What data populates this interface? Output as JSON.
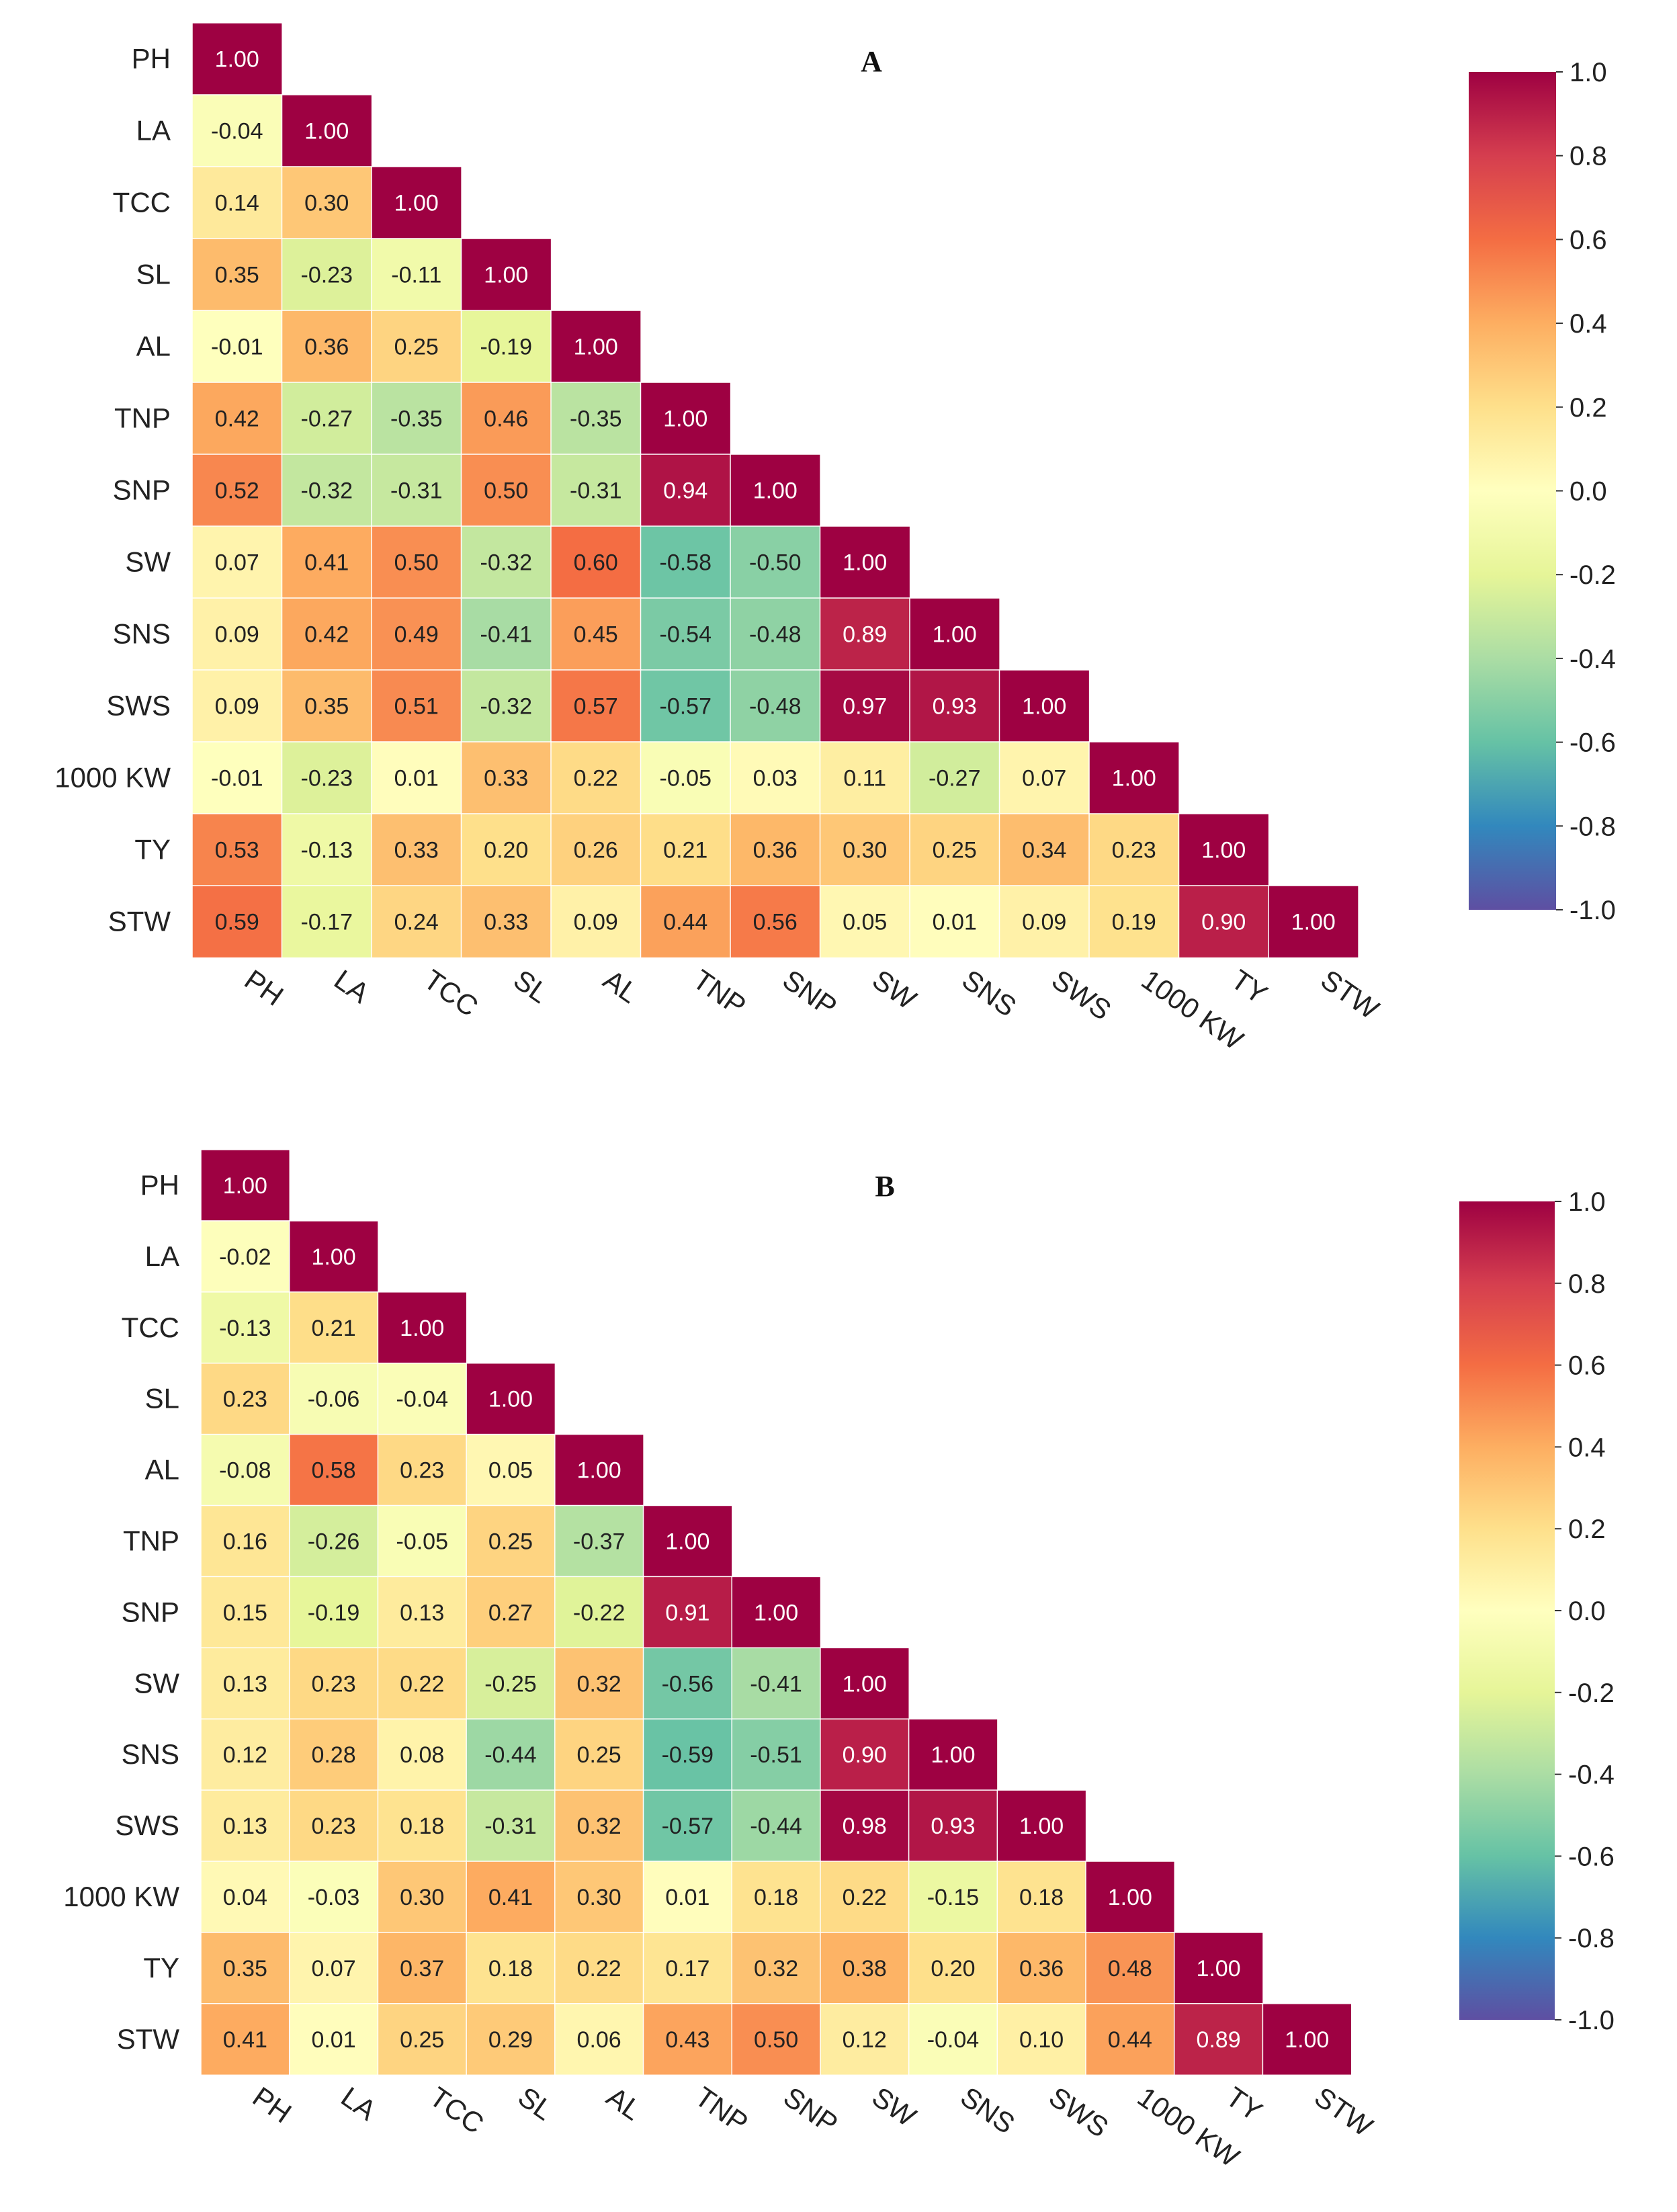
{
  "chart_data": [
    {
      "type": "heatmap",
      "title": "A",
      "variables": [
        "PH",
        "LA",
        "TCC",
        "SL",
        "AL",
        "TNP",
        "SNP",
        "SW",
        "SNS",
        "SWS",
        "1000 KW",
        "TY",
        "STW"
      ],
      "matrix": [
        [
          1.0
        ],
        [
          -0.04,
          1.0
        ],
        [
          0.14,
          0.3,
          1.0
        ],
        [
          0.35,
          -0.23,
          -0.11,
          1.0
        ],
        [
          -0.01,
          0.36,
          0.25,
          -0.19,
          1.0
        ],
        [
          0.42,
          -0.27,
          -0.35,
          0.46,
          -0.35,
          1.0
        ],
        [
          0.52,
          -0.32,
          -0.31,
          0.5,
          -0.31,
          0.94,
          1.0
        ],
        [
          0.07,
          0.41,
          0.5,
          -0.32,
          0.6,
          -0.58,
          -0.5,
          1.0
        ],
        [
          0.09,
          0.42,
          0.49,
          -0.41,
          0.45,
          -0.54,
          -0.48,
          0.89,
          1.0
        ],
        [
          0.09,
          0.35,
          0.51,
          -0.32,
          0.57,
          -0.57,
          -0.48,
          0.97,
          0.93,
          1.0
        ],
        [
          -0.01,
          -0.23,
          0.01,
          0.33,
          0.22,
          -0.05,
          0.03,
          0.11,
          -0.27,
          0.07,
          1.0
        ],
        [
          0.53,
          -0.13,
          0.33,
          0.2,
          0.26,
          0.21,
          0.36,
          0.3,
          0.25,
          0.34,
          0.23,
          1.0
        ],
        [
          0.59,
          -0.17,
          0.24,
          0.33,
          0.09,
          0.44,
          0.56,
          0.05,
          0.01,
          0.09,
          0.19,
          0.9,
          1.0
        ]
      ],
      "colorbar": {
        "range": [
          -1.0,
          1.0
        ],
        "ticks": [
          "1.0",
          "0.8",
          "0.6",
          "0.4",
          "0.2",
          "0.0",
          "-0.2",
          "-0.4",
          "-0.6",
          "-0.8",
          "-1.0"
        ]
      }
    },
    {
      "type": "heatmap",
      "title": "B",
      "variables": [
        "PH",
        "LA",
        "TCC",
        "SL",
        "AL",
        "TNP",
        "SNP",
        "SW",
        "SNS",
        "SWS",
        "1000 KW",
        "TY",
        "STW"
      ],
      "matrix": [
        [
          1.0
        ],
        [
          -0.02,
          1.0
        ],
        [
          -0.13,
          0.21,
          1.0
        ],
        [
          0.23,
          -0.06,
          -0.04,
          1.0
        ],
        [
          -0.08,
          0.58,
          0.23,
          0.05,
          1.0
        ],
        [
          0.16,
          -0.26,
          -0.05,
          0.25,
          -0.37,
          1.0
        ],
        [
          0.15,
          -0.19,
          0.13,
          0.27,
          -0.22,
          0.91,
          1.0
        ],
        [
          0.13,
          0.23,
          0.22,
          -0.25,
          0.32,
          -0.56,
          -0.41,
          1.0
        ],
        [
          0.12,
          0.28,
          0.08,
          -0.44,
          0.25,
          -0.59,
          -0.51,
          0.9,
          1.0
        ],
        [
          0.13,
          0.23,
          0.18,
          -0.31,
          0.32,
          -0.57,
          -0.44,
          0.98,
          0.93,
          1.0
        ],
        [
          0.04,
          -0.03,
          0.3,
          0.41,
          0.3,
          0.01,
          0.18,
          0.22,
          -0.15,
          0.18,
          1.0
        ],
        [
          0.35,
          0.07,
          0.37,
          0.18,
          0.22,
          0.17,
          0.32,
          0.38,
          0.2,
          0.36,
          0.48,
          1.0
        ],
        [
          0.41,
          0.01,
          0.25,
          0.29,
          0.06,
          0.43,
          0.5,
          0.12,
          -0.04,
          0.1,
          0.44,
          0.89,
          1.0
        ]
      ],
      "colorbar": {
        "range": [
          -1.0,
          1.0
        ],
        "ticks": [
          "1.0",
          "0.8",
          "0.6",
          "0.4",
          "0.2",
          "0.0",
          "-0.2",
          "-0.4",
          "-0.6",
          "-0.8",
          "-1.0"
        ]
      }
    }
  ],
  "colors": {
    "palette": [
      "#9e0142",
      "#d53e4f",
      "#f46d43",
      "#fdae61",
      "#fee08b",
      "#ffffbf",
      "#e6f598",
      "#abdda4",
      "#66c2a5",
      "#3288bd",
      "#5e4fa2"
    ]
  }
}
